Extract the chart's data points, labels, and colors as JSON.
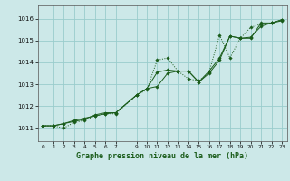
{
  "title": "Graphe pression niveau de la mer (hPa)",
  "background_color": "#cce8e8",
  "grid_color": "#99cccc",
  "line_color": "#1a5c1a",
  "marker_color": "#1a5c1a",
  "xlim": [
    -0.5,
    23.5
  ],
  "ylim": [
    1010.4,
    1016.6
  ],
  "yticks": [
    1011,
    1012,
    1013,
    1014,
    1015,
    1016
  ],
  "xticks": [
    0,
    1,
    2,
    3,
    4,
    5,
    6,
    7,
    9,
    10,
    11,
    12,
    13,
    14,
    15,
    16,
    17,
    18,
    19,
    20,
    21,
    22,
    23
  ],
  "line1_x": [
    0,
    1,
    2,
    3,
    4,
    5,
    6,
    7,
    9,
    10,
    11,
    12,
    13,
    14,
    15,
    16,
    17,
    18,
    19,
    20,
    21,
    22,
    23
  ],
  "line1_y": [
    1011.1,
    1011.1,
    1011.2,
    1011.35,
    1011.45,
    1011.55,
    1011.65,
    1011.7,
    1012.5,
    1012.8,
    1013.55,
    1013.65,
    1013.6,
    1013.6,
    1013.1,
    1013.6,
    1014.2,
    1015.2,
    1015.1,
    1015.15,
    1015.65,
    1015.8,
    1015.95
  ],
  "line2_x": [
    0,
    1,
    2,
    3,
    4,
    5,
    6,
    7,
    9,
    10,
    11,
    12,
    13,
    14,
    15,
    16,
    17,
    18,
    19,
    20,
    21,
    22,
    23
  ],
  "line2_y": [
    1011.1,
    1011.1,
    1011.0,
    1011.25,
    1011.35,
    1011.55,
    1011.65,
    1011.65,
    1012.5,
    1012.75,
    1014.1,
    1014.2,
    1013.6,
    1013.25,
    1013.15,
    1013.55,
    1015.25,
    1014.2,
    1015.1,
    1015.6,
    1015.75,
    1015.8,
    1015.95
  ],
  "line3_x": [
    0,
    1,
    2,
    3,
    4,
    5,
    6,
    7,
    9,
    10,
    11,
    12,
    13,
    14,
    15,
    16,
    17,
    18,
    19,
    20,
    21,
    22,
    23
  ],
  "line3_y": [
    1011.1,
    1011.1,
    1011.2,
    1011.3,
    1011.4,
    1011.6,
    1011.7,
    1011.7,
    1012.5,
    1012.8,
    1012.9,
    1013.5,
    1013.6,
    1013.6,
    1013.1,
    1013.5,
    1014.1,
    1015.2,
    1015.1,
    1015.1,
    1015.8,
    1015.8,
    1015.9
  ]
}
